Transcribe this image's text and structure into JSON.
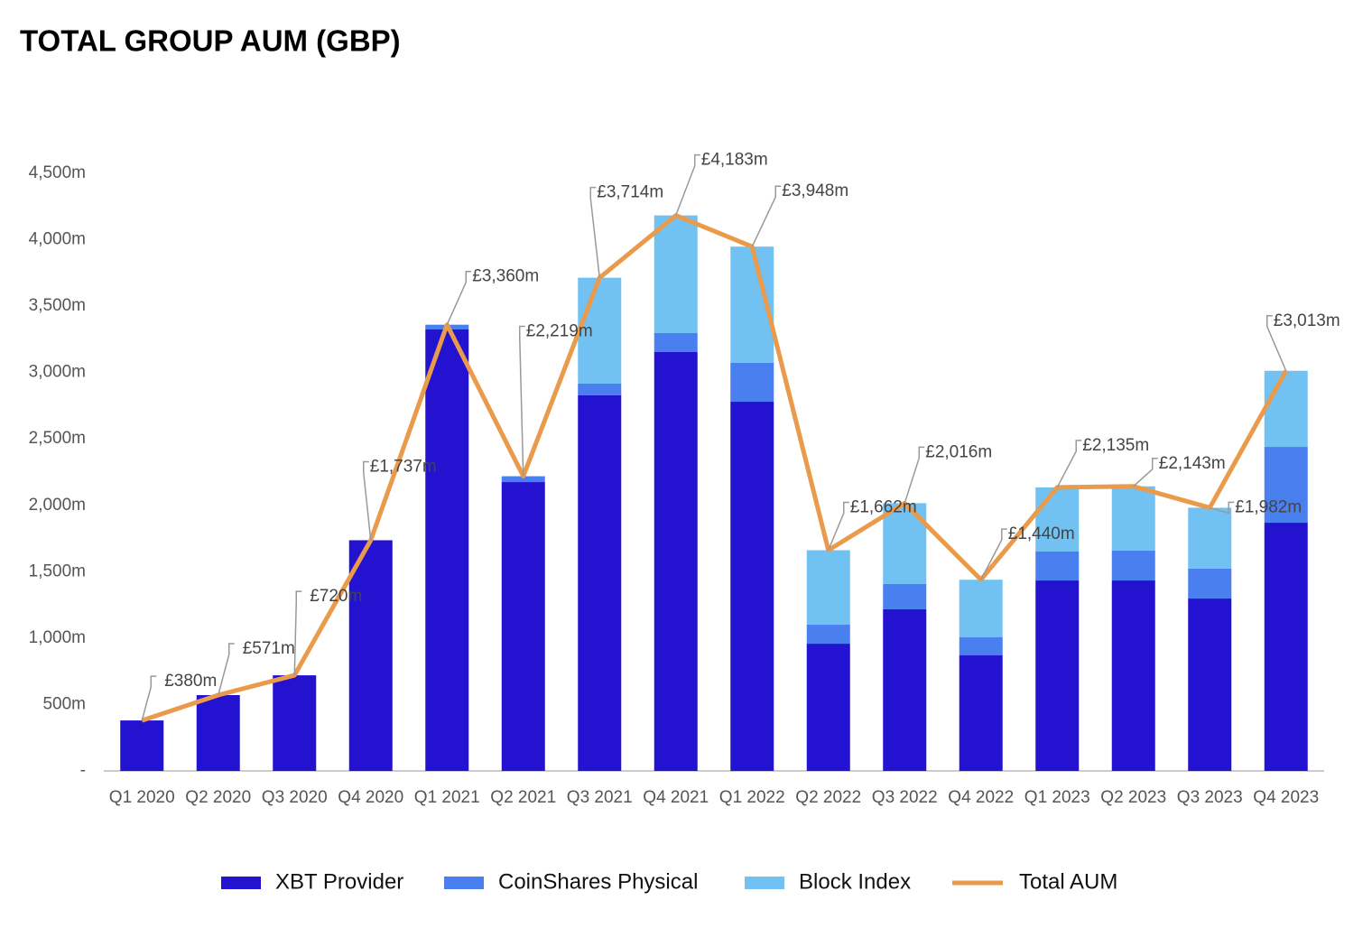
{
  "chart_data": {
    "type": "stacked-bar-line",
    "title": "TOTAL GROUP AUM (GBP)",
    "categories": [
      "Q1 2020",
      "Q2 2020",
      "Q3 2020",
      "Q4 2020",
      "Q1 2021",
      "Q2 2021",
      "Q3 2021",
      "Q4 2021",
      "Q1 2022",
      "Q2 2022",
      "Q3 2022",
      "Q4 2022",
      "Q1 2023",
      "Q2 2023",
      "Q3 2023",
      "Q4 2023"
    ],
    "series": [
      {
        "name": "XBT Provider",
        "type": "bar",
        "color": "#2312cf",
        "values": [
          380,
          571,
          720,
          1737,
          3324,
          2175,
          2828,
          3154,
          2780,
          958,
          1217,
          870,
          1434,
          1434,
          1298,
          1869
        ]
      },
      {
        "name": "CoinShares Physical",
        "type": "bar",
        "color": "#4a7ff0",
        "values": [
          0,
          0,
          0,
          0,
          36,
          44,
          88,
          143,
          293,
          143,
          190,
          136,
          218,
          225,
          225,
          571
        ]
      },
      {
        "name": "Block Index",
        "type": "bar",
        "color": "#71c2f2",
        "values": [
          0,
          0,
          0,
          0,
          0,
          0,
          798,
          886,
          875,
          561,
          609,
          434,
          483,
          484,
          459,
          573
        ]
      },
      {
        "name": "Total AUM",
        "type": "line",
        "color": "#e99b4b",
        "values": [
          380,
          571,
          720,
          1737,
          3360,
          2219,
          3714,
          4183,
          3948,
          1662,
          2016,
          1440,
          2135,
          2143,
          1982,
          3013
        ],
        "value_labels": [
          "£380m",
          "£571m",
          "£720m",
          "£1,737m",
          "£3,360m",
          "£2,219m",
          "£3,714m",
          "£4,183m",
          "£3,948m",
          "£1,662m",
          "£2,016m",
          "£1,440m",
          "£2,135m",
          "£2,143m",
          "£1,982m",
          "£3,013m"
        ]
      }
    ],
    "ylim": [
      0,
      4500
    ],
    "yticks": [
      {
        "value": 0,
        "label": "-"
      },
      {
        "value": 500,
        "label": "500m"
      },
      {
        "value": 1000,
        "label": "1,000m"
      },
      {
        "value": 1500,
        "label": "1,500m"
      },
      {
        "value": 2000,
        "label": "2,000m"
      },
      {
        "value": 2500,
        "label": "2,500m"
      },
      {
        "value": 3000,
        "label": "3,000m"
      },
      {
        "value": 3500,
        "label": "3,500m"
      },
      {
        "value": 4000,
        "label": "4,000m"
      },
      {
        "value": 4500,
        "label": "4,500m"
      }
    ],
    "legend": "bottom"
  }
}
